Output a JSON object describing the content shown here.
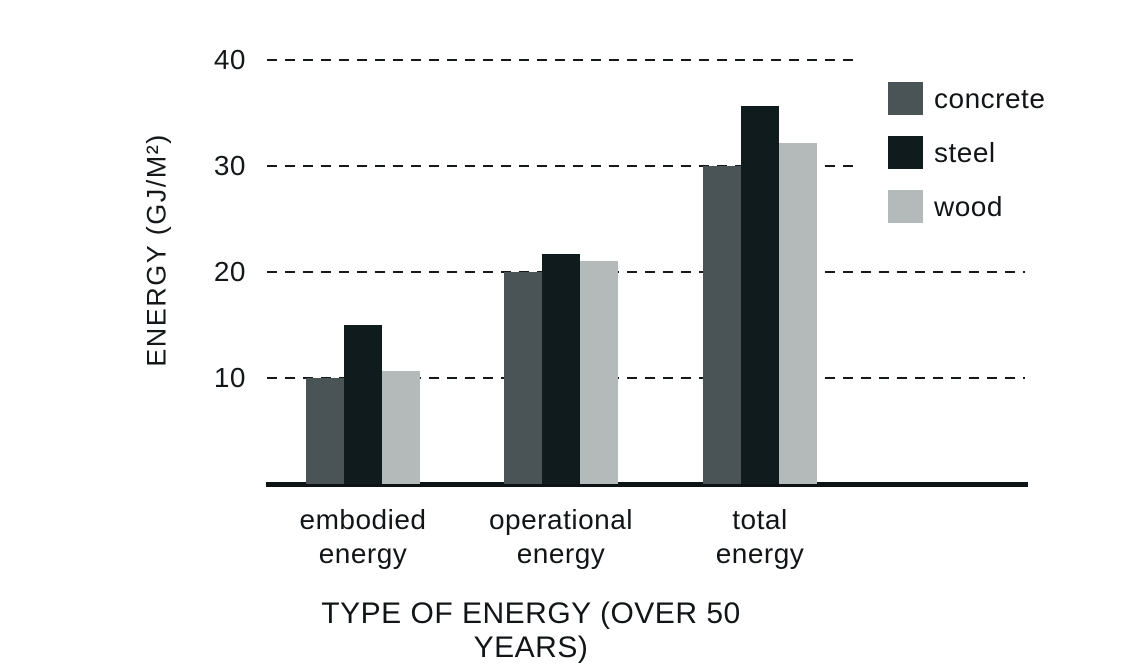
{
  "chart_data": {
    "type": "bar",
    "title": "",
    "xlabel": "TYPE OF ENERGY (OVER 50 YEARS)",
    "ylabel": "ENERGY (GJ/M²)",
    "categories": [
      "embodied energy",
      "operational energy",
      "total energy"
    ],
    "series": [
      {
        "name": "concrete",
        "color": "#4a5456",
        "values": [
          10,
          20,
          30
        ]
      },
      {
        "name": "steel",
        "color": "#101b1e",
        "values": [
          15,
          21.7,
          35.7
        ]
      },
      {
        "name": "wood",
        "color": "#b4baba",
        "values": [
          10.7,
          21,
          32.2
        ]
      }
    ],
    "yticks": [
      10,
      20,
      30,
      40
    ],
    "ylim": [
      0,
      44
    ],
    "grid": "horizontal-dashed",
    "grid_color": "#16191b",
    "axis_line_color": "#0e1315",
    "legend_position": "top-right",
    "background_color": "#ffffff"
  }
}
